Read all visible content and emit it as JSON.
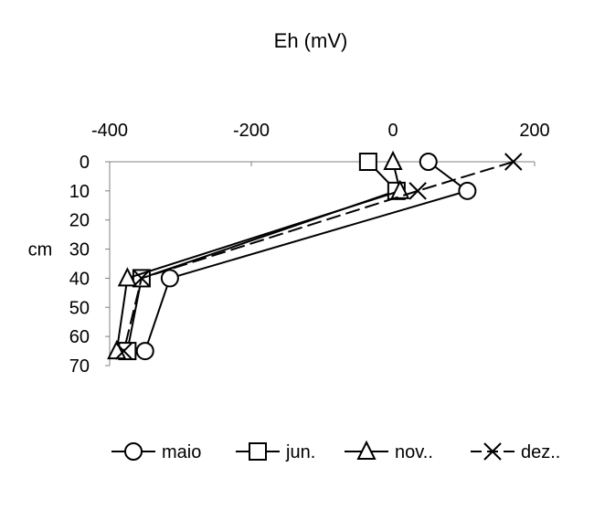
{
  "chart_data": {
    "type": "line",
    "title": "Eh (mV)",
    "xlabel": "Eh (mV)",
    "ylabel": "cm",
    "xlim": [
      -400,
      200
    ],
    "ylim": [
      0,
      70
    ],
    "x_ticks": [
      -400,
      -200,
      0,
      200
    ],
    "y_ticks": [
      0,
      10,
      20,
      30,
      40,
      50,
      60,
      70
    ],
    "x_axis_position": "top",
    "y_inverted": true,
    "grid": false,
    "legend_position": "bottom",
    "series": [
      {
        "name": "maio",
        "marker": "circle",
        "dash": "solid",
        "points": [
          {
            "x": 50,
            "y": 0
          },
          {
            "x": 105,
            "y": 10
          },
          {
            "x": -315,
            "y": 40
          },
          {
            "x": -350,
            "y": 65
          }
        ]
      },
      {
        "name": "jun.",
        "marker": "square",
        "dash": "solid",
        "points": [
          {
            "x": -35,
            "y": 0
          },
          {
            "x": 5,
            "y": 10
          },
          {
            "x": -355,
            "y": 40
          },
          {
            "x": -375,
            "y": 65
          }
        ]
      },
      {
        "name": "nov..",
        "marker": "triangle",
        "dash": "solid",
        "points": [
          {
            "x": 0,
            "y": 0
          },
          {
            "x": 10,
            "y": 10
          },
          {
            "x": -375,
            "y": 40
          },
          {
            "x": -390,
            "y": 65
          }
        ]
      },
      {
        "name": "dez..",
        "marker": "x",
        "dash": "dashed",
        "points": [
          {
            "x": 170,
            "y": 0
          },
          {
            "x": 35,
            "y": 10
          },
          {
            "x": -355,
            "y": 40
          },
          {
            "x": -380,
            "y": 65
          }
        ]
      }
    ]
  }
}
